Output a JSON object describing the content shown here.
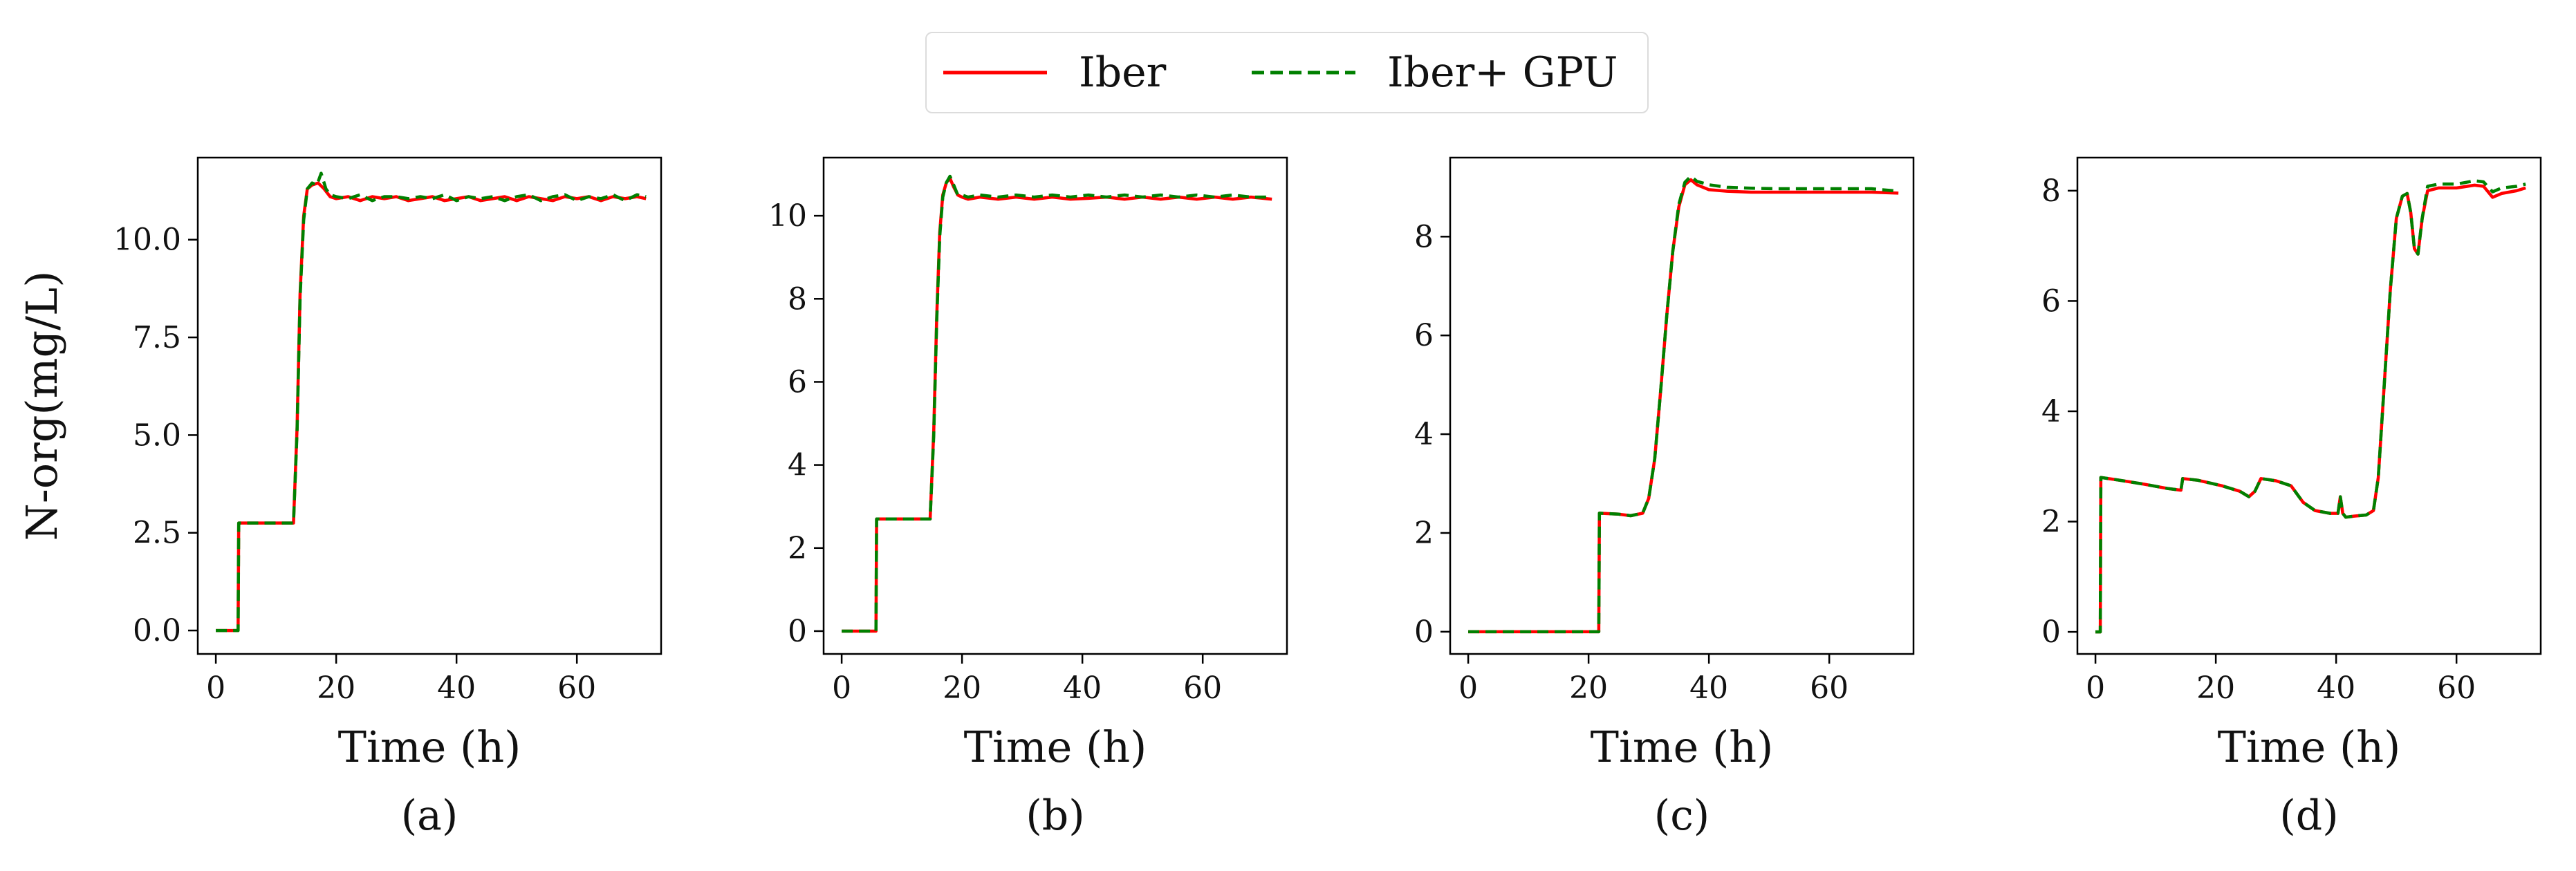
{
  "legend": {
    "entries": [
      {
        "label": "Iber",
        "color": "#ff0000",
        "style": "solid"
      },
      {
        "label": "Iber+ GPU",
        "color": "#008000",
        "style": "dashed"
      }
    ]
  },
  "chart_data": [
    {
      "type": "line",
      "panel_label": "(a)",
      "xlabel": "Time (h)",
      "ylabel": "N-org(mg/L)",
      "xlim": [
        -3,
        74
      ],
      "ylim": [
        -0.6,
        12.1
      ],
      "xticks": [
        0,
        20,
        40,
        60
      ],
      "xtick_labels": [
        "0",
        "20",
        "40",
        "60"
      ],
      "yticks": [
        0,
        2.5,
        5,
        7.5,
        10
      ],
      "ytick_labels": [
        "0.0",
        "2.5",
        "5.0",
        "7.5",
        "10.0"
      ],
      "series": [
        {
          "name": "Iber",
          "color": "#ff0000",
          "x": [
            0,
            3.7,
            3.8,
            12.9,
            13.5,
            14.0,
            14.6,
            15.2,
            16.0,
            17.0,
            18.0,
            19.0,
            20.0,
            22,
            24,
            26,
            28,
            30,
            32,
            34,
            36,
            38,
            40,
            42,
            44,
            46,
            48,
            50,
            52,
            54,
            56,
            58,
            60,
            62,
            64,
            66,
            68,
            70,
            71.5
          ],
          "y": [
            0.0,
            0.0,
            2.75,
            2.75,
            5.2,
            8.6,
            10.6,
            11.3,
            11.4,
            11.45,
            11.3,
            11.1,
            11.05,
            11.1,
            11.0,
            11.1,
            11.05,
            11.1,
            11.0,
            11.05,
            11.1,
            11.0,
            11.05,
            11.1,
            11.0,
            11.05,
            11.1,
            11.0,
            11.1,
            11.05,
            11.0,
            11.1,
            11.05,
            11.1,
            11.0,
            11.1,
            11.05,
            11.1,
            11.05
          ]
        },
        {
          "name": "Iber+ GPU",
          "color": "#008000",
          "x": [
            0,
            3.7,
            3.8,
            12.9,
            13.5,
            14.0,
            14.6,
            15.2,
            16.0,
            16.8,
            17.5,
            18.3,
            19.0,
            20.0,
            22,
            24,
            26,
            28,
            30,
            32,
            34,
            36,
            38,
            40,
            42,
            44,
            46,
            48,
            50,
            52,
            54,
            56,
            58,
            60,
            62,
            64,
            66,
            68,
            70,
            71.5
          ],
          "y": [
            0.0,
            0.0,
            2.75,
            2.75,
            5.1,
            8.5,
            10.5,
            11.3,
            11.45,
            11.4,
            11.7,
            11.3,
            11.15,
            11.1,
            11.05,
            11.15,
            11.0,
            11.1,
            11.1,
            11.05,
            11.1,
            11.05,
            11.15,
            11.0,
            11.1,
            11.05,
            11.1,
            11.0,
            11.1,
            11.15,
            11.0,
            11.1,
            11.15,
            11.0,
            11.1,
            11.05,
            11.15,
            11.0,
            11.15,
            11.1
          ]
        }
      ]
    },
    {
      "type": "line",
      "panel_label": "(b)",
      "xlabel": "Time (h)",
      "ylabel": "",
      "xlim": [
        -3,
        74
      ],
      "ylim": [
        -0.55,
        11.4
      ],
      "xticks": [
        0,
        20,
        40,
        60
      ],
      "xtick_labels": [
        "0",
        "20",
        "40",
        "60"
      ],
      "yticks": [
        0,
        2,
        4,
        6,
        8,
        10
      ],
      "ytick_labels": [
        "0",
        "2",
        "4",
        "6",
        "8",
        "10"
      ],
      "series": [
        {
          "name": "Iber",
          "color": "#ff0000",
          "x": [
            0,
            5.7,
            5.8,
            14.7,
            15.3,
            15.8,
            16.3,
            16.8,
            17.4,
            18.0,
            18.6,
            19.3,
            20.0,
            21,
            23,
            26,
            29,
            32,
            35,
            38,
            41,
            44,
            47,
            50,
            53,
            56,
            59,
            62,
            65,
            68,
            71.5
          ],
          "y": [
            0.0,
            0.0,
            2.7,
            2.7,
            4.8,
            7.6,
            9.6,
            10.5,
            10.8,
            10.9,
            10.7,
            10.5,
            10.45,
            10.4,
            10.45,
            10.4,
            10.45,
            10.4,
            10.45,
            10.4,
            10.42,
            10.45,
            10.4,
            10.45,
            10.4,
            10.45,
            10.4,
            10.45,
            10.4,
            10.45,
            10.4
          ]
        },
        {
          "name": "Iber+ GPU",
          "color": "#008000",
          "x": [
            0,
            5.7,
            5.8,
            14.7,
            15.3,
            15.8,
            16.3,
            16.8,
            17.4,
            18.0,
            18.6,
            19.3,
            20.0,
            21,
            23,
            26,
            29,
            32,
            35,
            38,
            41,
            44,
            47,
            50,
            53,
            56,
            59,
            62,
            65,
            68,
            71.5
          ],
          "y": [
            0.0,
            0.0,
            2.7,
            2.7,
            4.7,
            7.5,
            9.5,
            10.45,
            10.8,
            10.95,
            10.75,
            10.5,
            10.5,
            10.45,
            10.5,
            10.45,
            10.5,
            10.45,
            10.5,
            10.45,
            10.5,
            10.45,
            10.5,
            10.45,
            10.5,
            10.45,
            10.5,
            10.45,
            10.5,
            10.45,
            10.45
          ]
        }
      ]
    },
    {
      "type": "line",
      "panel_label": "(c)",
      "xlabel": "Time (h)",
      "ylabel": "",
      "xlim": [
        -3,
        74
      ],
      "ylim": [
        -0.45,
        9.6
      ],
      "xticks": [
        0,
        20,
        40,
        60
      ],
      "xtick_labels": [
        "0",
        "20",
        "40",
        "60"
      ],
      "yticks": [
        0,
        2,
        4,
        6,
        8
      ],
      "ytick_labels": [
        "0",
        "2",
        "4",
        "6",
        "8"
      ],
      "series": [
        {
          "name": "Iber",
          "color": "#ff0000",
          "x": [
            0,
            21.7,
            21.8,
            25,
            27,
            29.0,
            30.0,
            31.0,
            32.0,
            33.0,
            34.0,
            35.0,
            36.0,
            37.0,
            38.0,
            40,
            43,
            47,
            51,
            55,
            59,
            63,
            67,
            71.5
          ],
          "y": [
            0.0,
            0.0,
            2.4,
            2.38,
            2.35,
            2.4,
            2.7,
            3.5,
            4.9,
            6.4,
            7.7,
            8.6,
            9.05,
            9.15,
            9.05,
            8.95,
            8.92,
            8.9,
            8.9,
            8.9,
            8.9,
            8.9,
            8.9,
            8.88
          ]
        },
        {
          "name": "Iber+ GPU",
          "color": "#008000",
          "x": [
            0,
            21.7,
            21.8,
            25,
            27,
            29.0,
            30.0,
            31.0,
            32.0,
            33.0,
            34.0,
            35.0,
            36.0,
            37.0,
            38.0,
            40,
            43,
            47,
            51,
            55,
            59,
            63,
            67,
            71.5
          ],
          "y": [
            0.0,
            0.0,
            2.4,
            2.38,
            2.35,
            2.4,
            2.7,
            3.5,
            4.9,
            6.4,
            7.7,
            8.65,
            9.1,
            9.22,
            9.12,
            9.05,
            9.0,
            8.98,
            8.97,
            8.97,
            8.97,
            8.97,
            8.97,
            8.92
          ]
        }
      ]
    },
    {
      "type": "line",
      "panel_label": "(d)",
      "xlabel": "Time (h)",
      "ylabel": "",
      "xlim": [
        -3,
        74
      ],
      "ylim": [
        -0.4,
        8.6
      ],
      "xticks": [
        0,
        20,
        40,
        60
      ],
      "xtick_labels": [
        "0",
        "20",
        "40",
        "60"
      ],
      "yticks": [
        0,
        2,
        4,
        6,
        8
      ],
      "ytick_labels": [
        "0",
        "2",
        "4",
        "6",
        "8"
      ],
      "series": [
        {
          "name": "Iber",
          "color": "#ff0000",
          "x": [
            0,
            0.8,
            0.9,
            4,
            8,
            12,
            14.2,
            14.5,
            17,
            21,
            24,
            25.5,
            26.5,
            27.5,
            30,
            32.5,
            34.5,
            36.5,
            39,
            40.3,
            40.7,
            41.1,
            41.6,
            43,
            45,
            46.2,
            47,
            48,
            49,
            50,
            51,
            51.8,
            52.4,
            53.0,
            53.6,
            54.3,
            55.2,
            57,
            60,
            63,
            64.5,
            66.0,
            67.5,
            70,
            71.5
          ],
          "y": [
            0.0,
            0.0,
            2.8,
            2.75,
            2.68,
            2.6,
            2.57,
            2.78,
            2.75,
            2.65,
            2.55,
            2.45,
            2.55,
            2.78,
            2.74,
            2.65,
            2.35,
            2.2,
            2.15,
            2.15,
            2.45,
            2.15,
            2.08,
            2.1,
            2.12,
            2.2,
            2.8,
            4.5,
            6.2,
            7.5,
            7.9,
            7.95,
            7.6,
            6.95,
            6.85,
            7.5,
            8.0,
            8.05,
            8.05,
            8.1,
            8.08,
            7.88,
            7.95,
            8.0,
            8.05
          ]
        },
        {
          "name": "Iber+ GPU",
          "color": "#008000",
          "x": [
            0,
            0.8,
            0.9,
            4,
            8,
            12,
            14.2,
            14.5,
            17,
            21,
            24,
            25.5,
            26.5,
            27.5,
            30,
            32.5,
            34.5,
            36.5,
            39,
            40.3,
            40.7,
            41.1,
            41.6,
            43,
            45,
            46.2,
            47,
            48,
            49,
            50,
            51,
            51.8,
            52.4,
            53.0,
            53.6,
            54.3,
            55.2,
            57,
            60,
            63,
            64.5,
            66.0,
            67.5,
            70,
            71.5
          ],
          "y": [
            0.0,
            0.0,
            2.8,
            2.75,
            2.68,
            2.6,
            2.57,
            2.78,
            2.75,
            2.65,
            2.55,
            2.45,
            2.55,
            2.78,
            2.74,
            2.65,
            2.35,
            2.2,
            2.15,
            2.15,
            2.45,
            2.15,
            2.08,
            2.1,
            2.12,
            2.2,
            2.8,
            4.5,
            6.2,
            7.5,
            7.9,
            7.95,
            7.6,
            6.95,
            6.85,
            7.5,
            8.08,
            8.12,
            8.12,
            8.18,
            8.16,
            7.98,
            8.05,
            8.08,
            8.12
          ]
        }
      ]
    }
  ]
}
